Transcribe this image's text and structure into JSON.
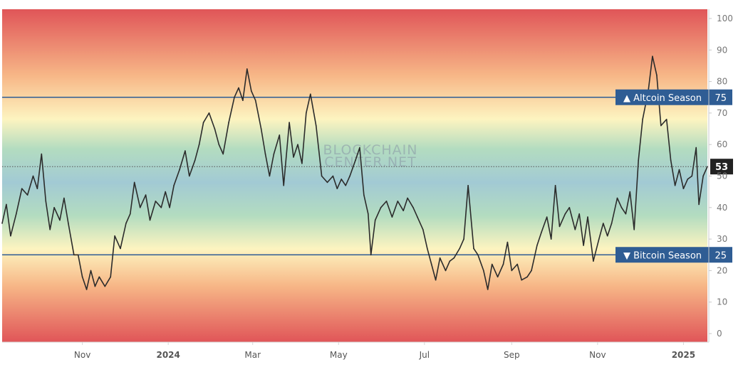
{
  "chart_data": {
    "type": "line",
    "title": "",
    "xlabel": "",
    "ylabel": "",
    "ylim": [
      0,
      100
    ],
    "y_ticks": [
      "0",
      "10",
      "20",
      "30",
      "40",
      "50",
      "60",
      "70",
      "80",
      "90",
      "100"
    ],
    "x_ticks": [
      {
        "label": "Nov",
        "date": "2023-11-01"
      },
      {
        "label": "2024",
        "date": "2024-01-01"
      },
      {
        "label": "Mar",
        "date": "2024-03-01"
      },
      {
        "label": "May",
        "date": "2024-05-01"
      },
      {
        "label": "Jul",
        "date": "2024-07-01"
      },
      {
        "label": "Sep",
        "date": "2024-09-01"
      },
      {
        "label": "Nov",
        "date": "2024-11-01"
      },
      {
        "label": "2025",
        "date": "2025-01-01"
      }
    ],
    "x_range": [
      "2023-09-05",
      "2025-01-18"
    ],
    "grid": false,
    "watermark": [
      "BLOCKCHAIN",
      "CENTER.NET"
    ],
    "reference_lines": [
      {
        "label": "▲ Altcoin Season",
        "value": 75,
        "value_label": "75",
        "color": "#2f5d94"
      },
      {
        "label": "▼ Bitcoin Season",
        "value": 25,
        "value_label": "25",
        "color": "#2f5d94"
      }
    ],
    "current_value": {
      "value": 53,
      "label": "53",
      "color": "#222222"
    },
    "background_gradient": [
      "#e05558",
      "#f7b787",
      "#fdf4c0",
      "#b3dcc0",
      "#a2cad4"
    ],
    "series": [
      {
        "color": "#2b2b2b",
        "points": [
          [
            "2023-09-05",
            35
          ],
          [
            "2023-09-08",
            41
          ],
          [
            "2023-09-11",
            31
          ],
          [
            "2023-09-15",
            38
          ],
          [
            "2023-09-19",
            46
          ],
          [
            "2023-09-23",
            44
          ],
          [
            "2023-09-27",
            50
          ],
          [
            "2023-09-30",
            46
          ],
          [
            "2023-10-03",
            57
          ],
          [
            "2023-10-06",
            42
          ],
          [
            "2023-10-09",
            33
          ],
          [
            "2023-10-12",
            40
          ],
          [
            "2023-10-16",
            36
          ],
          [
            "2023-10-19",
            43
          ],
          [
            "2023-10-22",
            35
          ],
          [
            "2023-10-26",
            25
          ],
          [
            "2023-10-29",
            25
          ],
          [
            "2023-11-01",
            18
          ],
          [
            "2023-11-04",
            14
          ],
          [
            "2023-11-07",
            20
          ],
          [
            "2023-11-10",
            15
          ],
          [
            "2023-11-13",
            18
          ],
          [
            "2023-11-17",
            15
          ],
          [
            "2023-11-21",
            18
          ],
          [
            "2023-11-24",
            31
          ],
          [
            "2023-11-28",
            27
          ],
          [
            "2023-12-02",
            35
          ],
          [
            "2023-12-05",
            38
          ],
          [
            "2023-12-08",
            48
          ],
          [
            "2023-12-12",
            40
          ],
          [
            "2023-12-16",
            44
          ],
          [
            "2023-12-19",
            36
          ],
          [
            "2023-12-23",
            42
          ],
          [
            "2023-12-27",
            40
          ],
          [
            "2023-12-30",
            45
          ],
          [
            "2024-01-02",
            40
          ],
          [
            "2024-01-05",
            47
          ],
          [
            "2024-01-09",
            52
          ],
          [
            "2024-01-13",
            58
          ],
          [
            "2024-01-16",
            50
          ],
          [
            "2024-01-20",
            55
          ],
          [
            "2024-01-23",
            60
          ],
          [
            "2024-01-26",
            67
          ],
          [
            "2024-01-30",
            70
          ],
          [
            "2024-02-03",
            65
          ],
          [
            "2024-02-06",
            60
          ],
          [
            "2024-02-09",
            57
          ],
          [
            "2024-02-13",
            67
          ],
          [
            "2024-02-17",
            75
          ],
          [
            "2024-02-20",
            78
          ],
          [
            "2024-02-23",
            74
          ],
          [
            "2024-02-26",
            84
          ],
          [
            "2024-02-29",
            77
          ],
          [
            "2024-03-03",
            74
          ],
          [
            "2024-03-07",
            65
          ],
          [
            "2024-03-10",
            57
          ],
          [
            "2024-03-13",
            50
          ],
          [
            "2024-03-16",
            57
          ],
          [
            "2024-03-20",
            63
          ],
          [
            "2024-03-23",
            47
          ],
          [
            "2024-03-27",
            67
          ],
          [
            "2024-03-30",
            56
          ],
          [
            "2024-04-02",
            60
          ],
          [
            "2024-04-05",
            54
          ],
          [
            "2024-04-08",
            70
          ],
          [
            "2024-04-11",
            76
          ],
          [
            "2024-04-15",
            66
          ],
          [
            "2024-04-19",
            50
          ],
          [
            "2024-04-23",
            48
          ],
          [
            "2024-04-27",
            50
          ],
          [
            "2024-04-30",
            46
          ],
          [
            "2024-05-03",
            49
          ],
          [
            "2024-05-06",
            47
          ],
          [
            "2024-05-09",
            50
          ],
          [
            "2024-05-13",
            55
          ],
          [
            "2024-05-16",
            59
          ],
          [
            "2024-05-19",
            44
          ],
          [
            "2024-05-22",
            38
          ],
          [
            "2024-05-24",
            25
          ],
          [
            "2024-05-27",
            36
          ],
          [
            "2024-05-31",
            40
          ],
          [
            "2024-06-04",
            42
          ],
          [
            "2024-06-08",
            37
          ],
          [
            "2024-06-12",
            42
          ],
          [
            "2024-06-16",
            39
          ],
          [
            "2024-06-19",
            43
          ],
          [
            "2024-06-23",
            40
          ],
          [
            "2024-06-26",
            37
          ],
          [
            "2024-06-30",
            33
          ],
          [
            "2024-07-03",
            27
          ],
          [
            "2024-07-06",
            22
          ],
          [
            "2024-07-09",
            17
          ],
          [
            "2024-07-12",
            24
          ],
          [
            "2024-07-16",
            20
          ],
          [
            "2024-07-19",
            23
          ],
          [
            "2024-07-22",
            24
          ],
          [
            "2024-07-26",
            27
          ],
          [
            "2024-07-29",
            30
          ],
          [
            "2024-08-01",
            47
          ],
          [
            "2024-08-05",
            27
          ],
          [
            "2024-08-08",
            25
          ],
          [
            "2024-08-12",
            20
          ],
          [
            "2024-08-15",
            14
          ],
          [
            "2024-08-18",
            22
          ],
          [
            "2024-08-22",
            18
          ],
          [
            "2024-08-26",
            22
          ],
          [
            "2024-08-29",
            29
          ],
          [
            "2024-09-01",
            20
          ],
          [
            "2024-09-05",
            22
          ],
          [
            "2024-09-08",
            17
          ],
          [
            "2024-09-12",
            18
          ],
          [
            "2024-09-15",
            20
          ],
          [
            "2024-09-19",
            28
          ],
          [
            "2024-09-22",
            32
          ],
          [
            "2024-09-26",
            37
          ],
          [
            "2024-09-29",
            30
          ],
          [
            "2024-10-02",
            47
          ],
          [
            "2024-10-05",
            34
          ],
          [
            "2024-10-09",
            38
          ],
          [
            "2024-10-12",
            40
          ],
          [
            "2024-10-16",
            33
          ],
          [
            "2024-10-19",
            38
          ],
          [
            "2024-10-22",
            28
          ],
          [
            "2024-10-25",
            37
          ],
          [
            "2024-10-29",
            23
          ],
          [
            "2024-11-02",
            30
          ],
          [
            "2024-11-05",
            35
          ],
          [
            "2024-11-08",
            31
          ],
          [
            "2024-11-11",
            35
          ],
          [
            "2024-11-15",
            43
          ],
          [
            "2024-11-18",
            40
          ],
          [
            "2024-11-21",
            38
          ],
          [
            "2024-11-24",
            45
          ],
          [
            "2024-11-27",
            33
          ],
          [
            "2024-11-30",
            55
          ],
          [
            "2024-12-03",
            68
          ],
          [
            "2024-12-07",
            77
          ],
          [
            "2024-12-10",
            88
          ],
          [
            "2024-12-13",
            82
          ],
          [
            "2024-12-16",
            66
          ],
          [
            "2024-12-20",
            68
          ],
          [
            "2024-12-23",
            55
          ],
          [
            "2024-12-26",
            47
          ],
          [
            "2024-12-29",
            52
          ],
          [
            "2025-01-01",
            46
          ],
          [
            "2025-01-04",
            49
          ],
          [
            "2025-01-07",
            50
          ],
          [
            "2025-01-10",
            59
          ],
          [
            "2025-01-12",
            41
          ],
          [
            "2025-01-15",
            50
          ],
          [
            "2025-01-18",
            53
          ]
        ]
      }
    ]
  }
}
